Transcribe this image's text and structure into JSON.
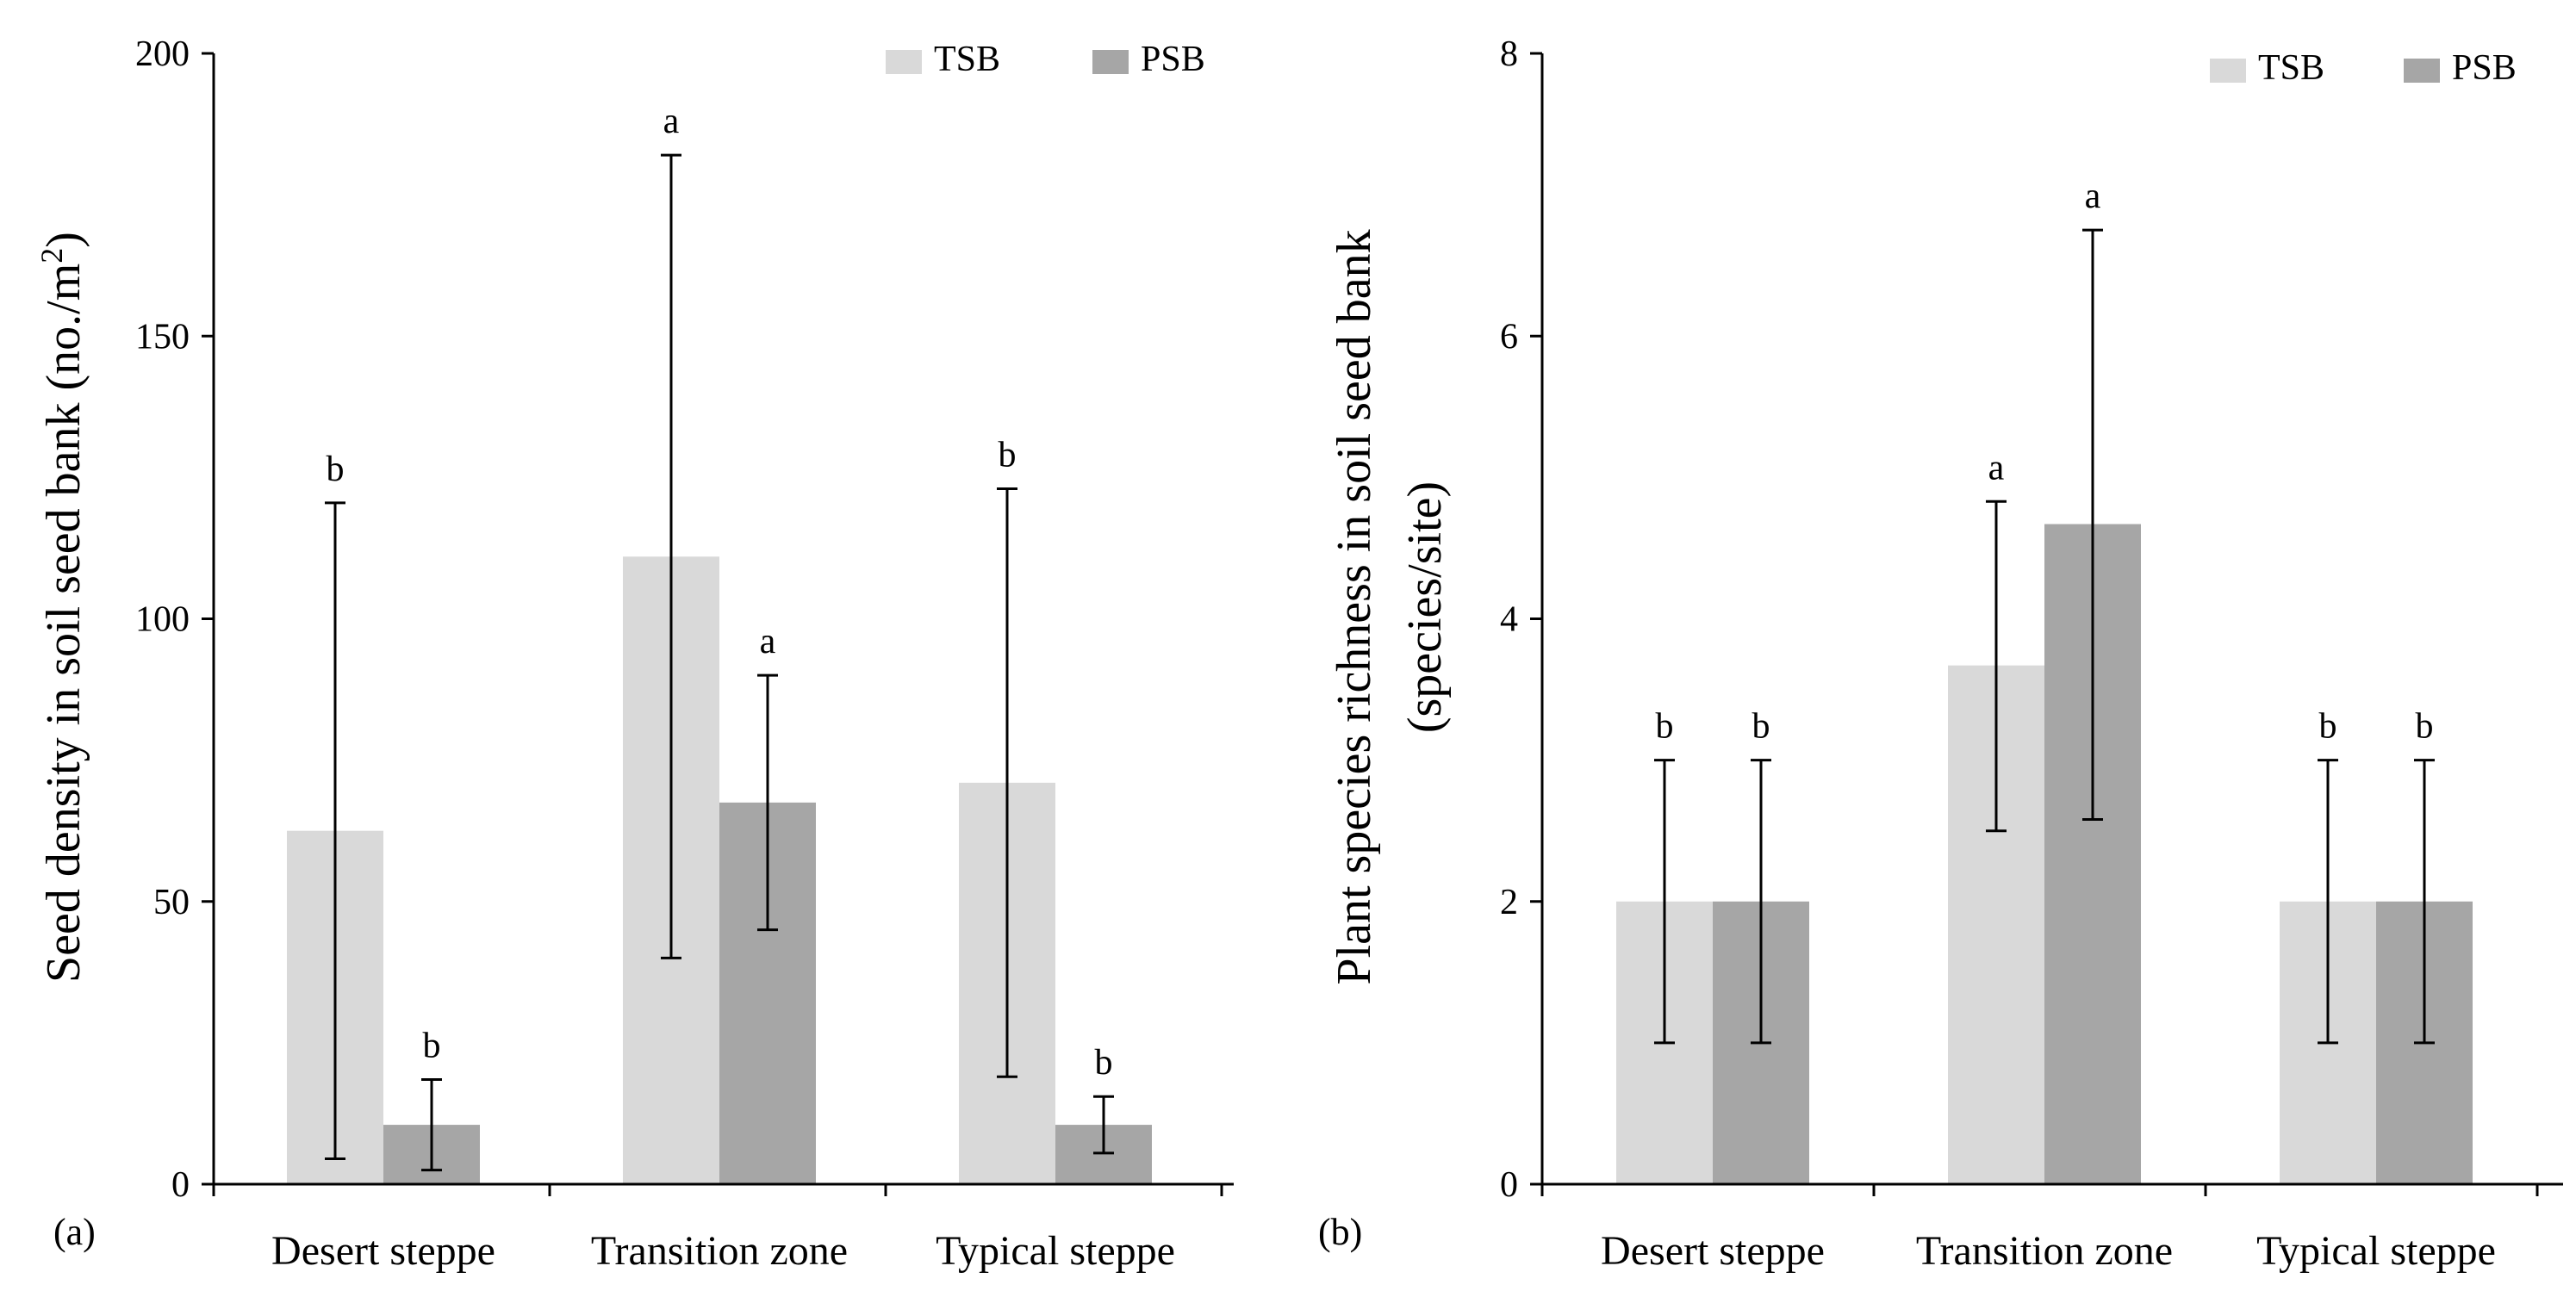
{
  "colors": {
    "TSB": "#d9d9d9",
    "PSB": "#a6a6a6",
    "axis": "#000000",
    "errorbar": "#000000"
  },
  "chart_data": [
    {
      "type": "bar",
      "panel_label": "(a)",
      "ylabel_parts": [
        "Seed density in soil seed bank (no./m",
        "2",
        ")"
      ],
      "ylabel": "Seed density in soil seed bank (no./m²)",
      "xlabel": "",
      "ylim": [
        0,
        200
      ],
      "yticks": [
        0,
        50,
        100,
        150,
        200
      ],
      "categories": [
        "Desert steppe",
        "Transition zone",
        "Typical steppe"
      ],
      "legend": [
        "TSB",
        "PSB"
      ],
      "legend_position": "top-right",
      "series": [
        {
          "name": "TSB",
          "values": [
            62.5,
            111,
            71
          ],
          "err_low": [
            4.5,
            40,
            19
          ],
          "err_high": [
            120.5,
            182,
            123
          ],
          "letters": [
            "b",
            "a",
            "b"
          ]
        },
        {
          "name": "PSB",
          "values": [
            10.5,
            67.5,
            10.5
          ],
          "err_low": [
            2.5,
            45,
            5.5
          ],
          "err_high": [
            18.5,
            90,
            15.5
          ],
          "letters": [
            "b",
            "a",
            "b"
          ]
        }
      ]
    },
    {
      "type": "bar",
      "panel_label": "(b)",
      "ylabel_lines": [
        "Plant species richness in soil seed bank",
        "(species/site)"
      ],
      "ylabel": "Plant species richness in soil seed bank (species/site)",
      "xlabel": "",
      "ylim": [
        0,
        8
      ],
      "yticks": [
        0,
        2,
        4,
        6,
        8
      ],
      "categories": [
        "Desert steppe",
        "Transition zone",
        "Typical steppe"
      ],
      "legend": [
        "TSB",
        "PSB"
      ],
      "legend_position": "top-right",
      "series": [
        {
          "name": "TSB",
          "values": [
            2,
            3.67,
            2
          ],
          "err_low": [
            1,
            2.5,
            1
          ],
          "err_high": [
            3,
            4.83,
            3
          ],
          "letters": [
            "b",
            "a",
            "b"
          ]
        },
        {
          "name": "PSB",
          "values": [
            2,
            4.67,
            2
          ],
          "err_low": [
            1,
            2.58,
            1
          ],
          "err_high": [
            3,
            6.75,
            3
          ],
          "letters": [
            "b",
            "a",
            "b"
          ]
        }
      ]
    }
  ]
}
